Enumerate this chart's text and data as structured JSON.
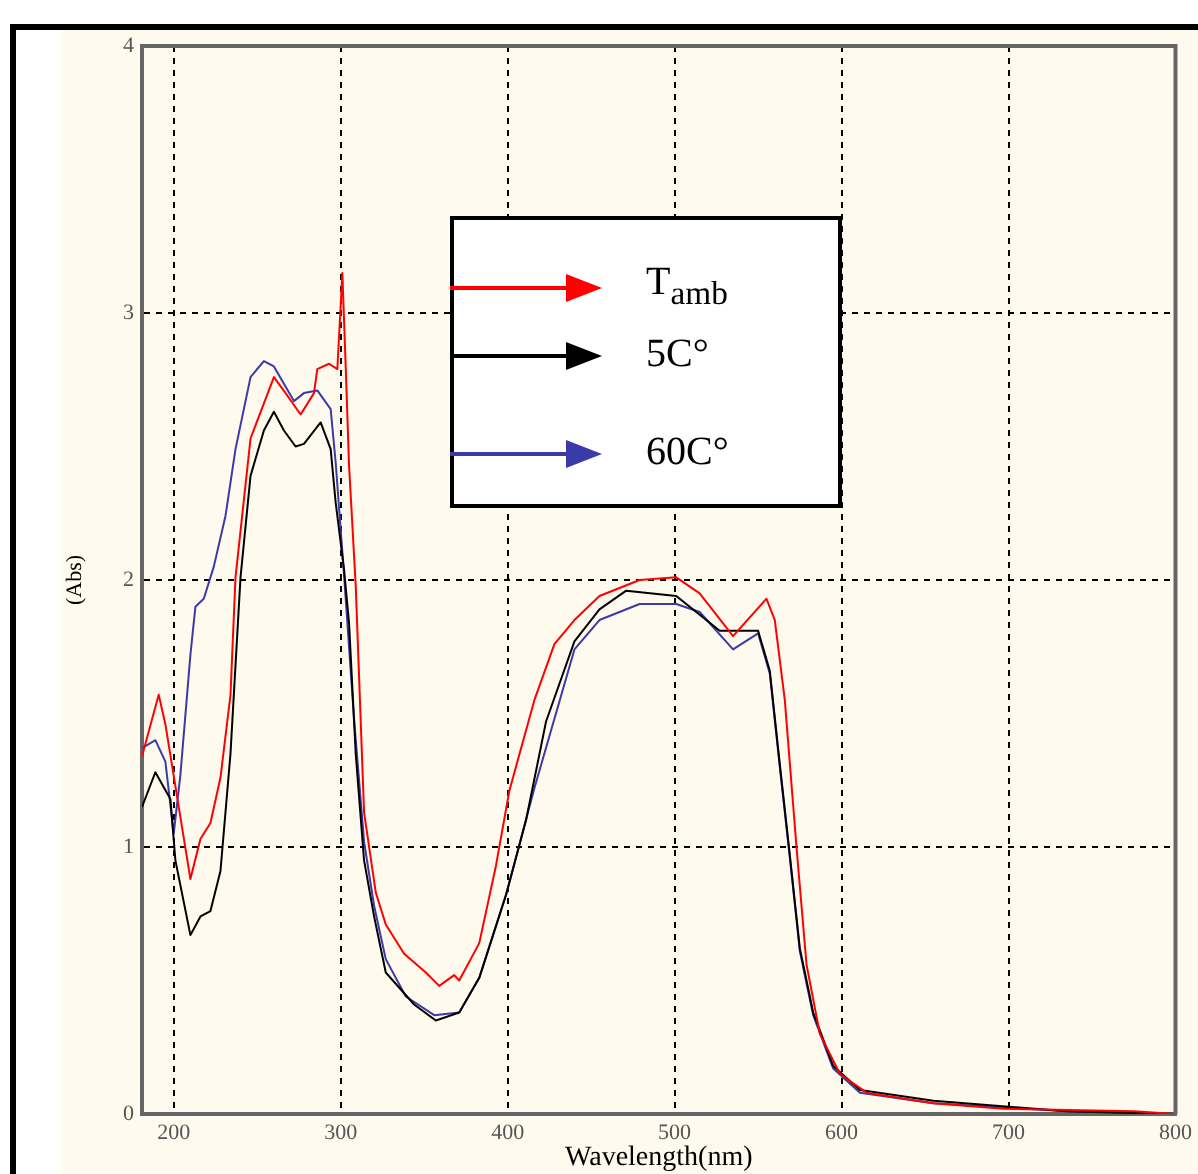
{
  "chart_data": {
    "type": "line",
    "xlabel": "Wavelength(nm)",
    "ylabel": "(Abs)",
    "xlim": [
      181,
      800
    ],
    "xticks": [
      200,
      300,
      400,
      500,
      600,
      700,
      800
    ],
    "ylim": [
      0,
      4
    ],
    "yticks": [
      0,
      1,
      2,
      3,
      4
    ],
    "grid": true,
    "legend": "top",
    "marker": "none",
    "line_style": "solid",
    "series": [
      {
        "name": "T$_{amb}$",
        "color": "#ff0000",
        "x": [
          181,
          191,
          195,
          210,
          216,
          222,
          228,
          234,
          237,
          246,
          260,
          267,
          276,
          284,
          286,
          293,
          298,
          301,
          303,
          305,
          309,
          314,
          321,
          327,
          338,
          351,
          359,
          368,
          371,
          383,
          393,
          401,
          416,
          428,
          440,
          455,
          479,
          501,
          515,
          535,
          555,
          560,
          566,
          573,
          579,
          587,
          599,
          615,
          655,
          697,
          775,
          800
        ],
        "values": [
          1.34,
          1.57,
          1.46,
          0.88,
          1.03,
          1.09,
          1.26,
          1.57,
          2.01,
          2.53,
          2.76,
          2.7,
          2.62,
          2.7,
          2.79,
          2.81,
          2.79,
          3.15,
          2.8,
          2.43,
          1.98,
          1.13,
          0.83,
          0.71,
          0.6,
          0.53,
          0.48,
          0.52,
          0.5,
          0.64,
          0.93,
          1.21,
          1.55,
          1.76,
          1.85,
          1.94,
          2.0,
          2.01,
          1.95,
          1.79,
          1.93,
          1.85,
          1.55,
          1.0,
          0.56,
          0.3,
          0.15,
          0.08,
          0.04,
          0.02,
          0.01,
          0.0
        ]
      },
      {
        "name": "5C°",
        "color": "#000000",
        "x": [
          181,
          189,
          198,
          201,
          210,
          216,
          222,
          228,
          234,
          240,
          246,
          254,
          260,
          266,
          273,
          278,
          288,
          294,
          297,
          302,
          305,
          309,
          314,
          320,
          327,
          344,
          357,
          371,
          383,
          399,
          411,
          423,
          440,
          455,
          471,
          501,
          527,
          550,
          557,
          563,
          569,
          575,
          583,
          595,
          611,
          655,
          735,
          800
        ],
        "values": [
          1.15,
          1.28,
          1.18,
          0.95,
          0.67,
          0.74,
          0.76,
          0.91,
          1.35,
          2.01,
          2.39,
          2.56,
          2.63,
          2.56,
          2.5,
          2.51,
          2.59,
          2.49,
          2.29,
          2.04,
          1.84,
          1.35,
          0.95,
          0.74,
          0.53,
          0.41,
          0.35,
          0.38,
          0.51,
          0.82,
          1.1,
          1.47,
          1.77,
          1.89,
          1.96,
          1.94,
          1.81,
          1.81,
          1.66,
          1.31,
          0.97,
          0.62,
          0.38,
          0.18,
          0.09,
          0.05,
          0.01,
          0.0
        ]
      },
      {
        "name": "60C°",
        "color": "#3a3aa8",
        "x": [
          181,
          189,
          195,
          200,
          204,
          210,
          213,
          218,
          224,
          231,
          237,
          246,
          254,
          260,
          272,
          278,
          286,
          294,
          297,
          302,
          308,
          314,
          320,
          327,
          339,
          356,
          371,
          383,
          399,
          416,
          440,
          455,
          479,
          501,
          515,
          535,
          550,
          557,
          563,
          569,
          575,
          583,
          595,
          611,
          655,
          735,
          800
        ],
        "values": [
          1.37,
          1.4,
          1.32,
          1.05,
          1.27,
          1.72,
          1.9,
          1.93,
          2.05,
          2.24,
          2.49,
          2.76,
          2.82,
          2.8,
          2.67,
          2.7,
          2.71,
          2.64,
          2.44,
          2.02,
          1.48,
          1.02,
          0.78,
          0.58,
          0.44,
          0.37,
          0.38,
          0.51,
          0.82,
          1.22,
          1.74,
          1.85,
          1.91,
          1.91,
          1.88,
          1.74,
          1.8,
          1.65,
          1.3,
          0.96,
          0.61,
          0.37,
          0.17,
          0.08,
          0.04,
          0.01,
          0.0
        ]
      }
    ]
  }
}
